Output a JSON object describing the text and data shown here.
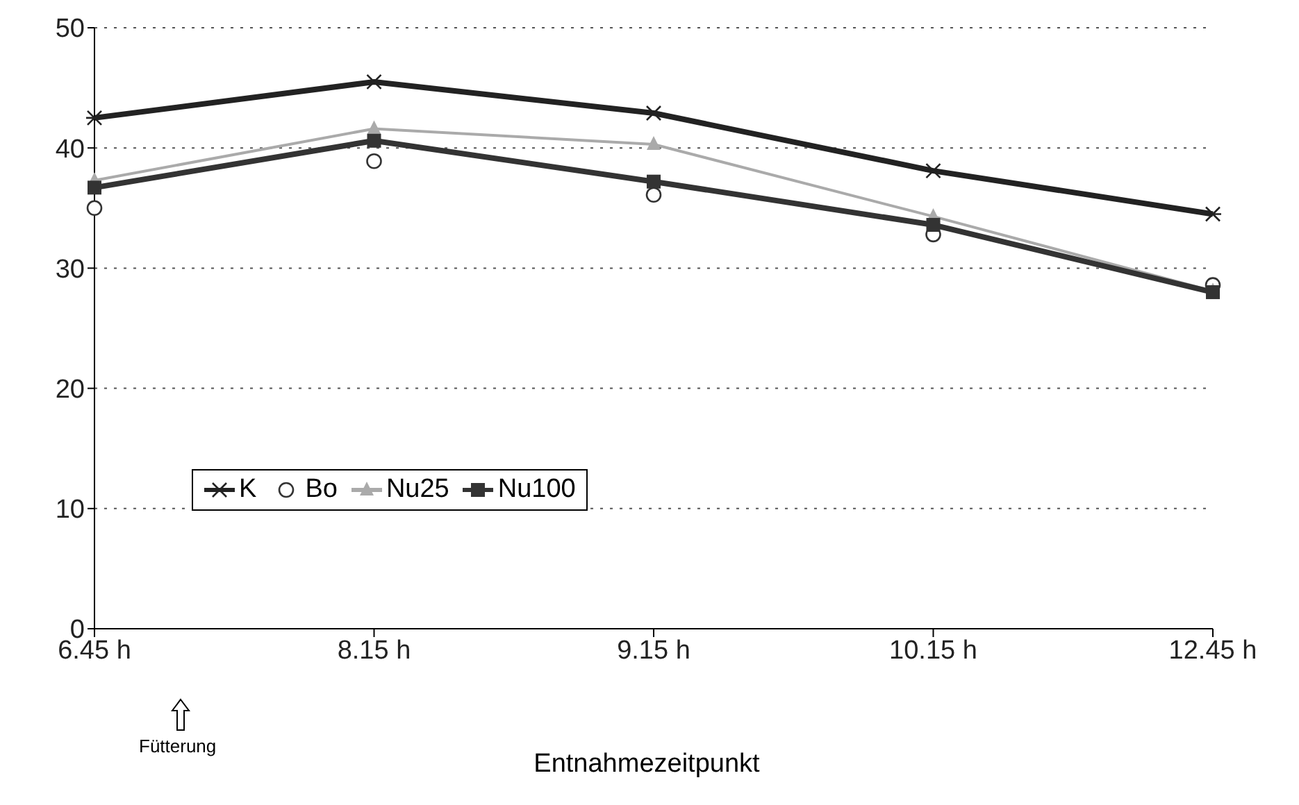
{
  "chart_data": {
    "type": "line",
    "xlabel": "Entnahmezeitpunkt",
    "categories": [
      "6.45 h",
      "8.15 h",
      "9.15 h",
      "10.15 h",
      "12.45 h"
    ],
    "series": [
      {
        "name": "K",
        "color": "#222222",
        "marker": "cross",
        "values": [
          42.5,
          45.5,
          42.9,
          38.1,
          34.5
        ]
      },
      {
        "name": "Bo",
        "type": "scatter",
        "color": "#333333",
        "marker": "circle",
        "values": [
          35.0,
          38.9,
          36.1,
          32.8,
          28.6
        ]
      },
      {
        "name": "Nu25",
        "color": "#aaaaaa",
        "marker": "triangle",
        "values": [
          37.3,
          41.6,
          40.3,
          34.3,
          28.1
        ]
      },
      {
        "name": "Nu100",
        "color": "#333333",
        "marker": "square",
        "values": [
          36.7,
          40.6,
          37.2,
          33.6,
          28.0
        ]
      }
    ],
    "ylim": [
      0,
      50
    ],
    "yticks": [
      0,
      10,
      20,
      30,
      40,
      50
    ],
    "grid": "y",
    "legend": "left",
    "annotations": [
      "Fütterung"
    ]
  }
}
